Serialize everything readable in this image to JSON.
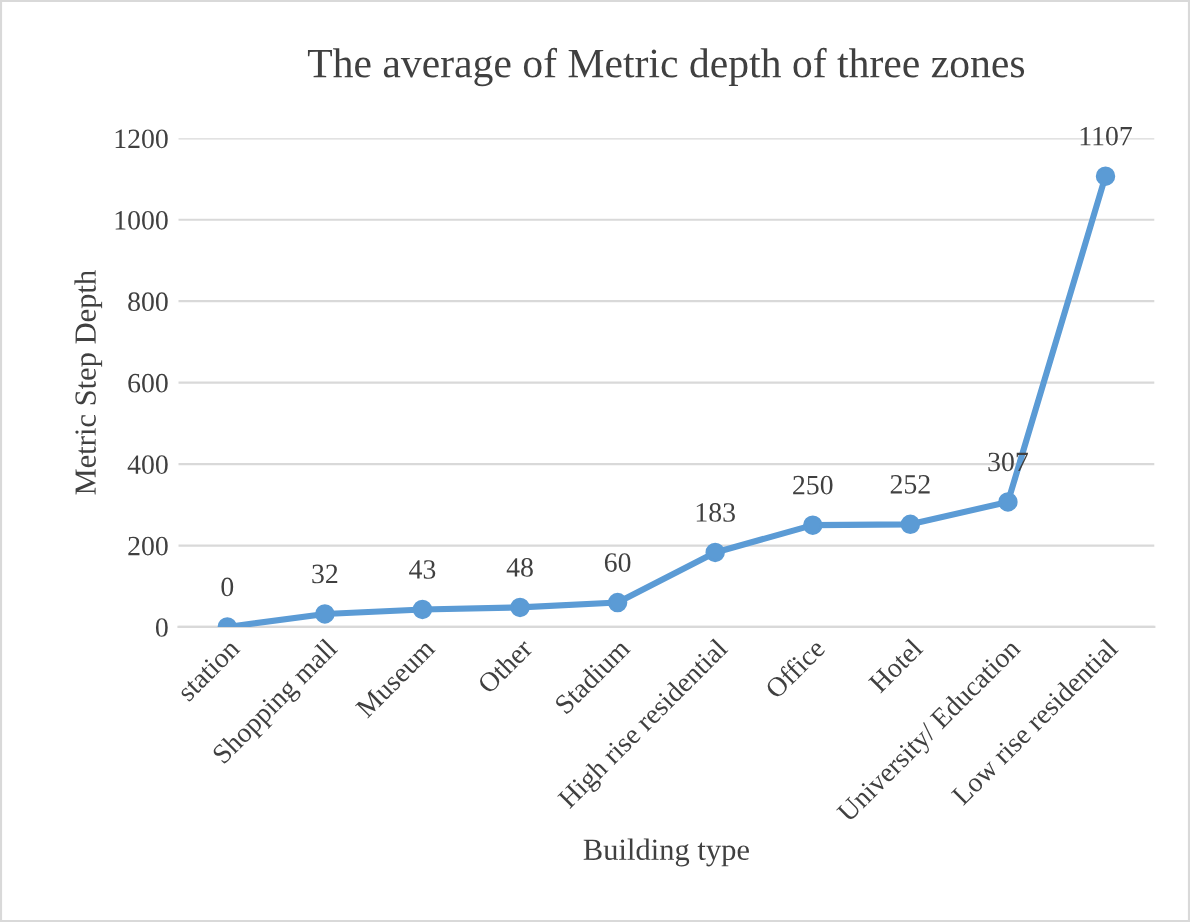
{
  "chart_data": {
    "type": "line",
    "title": "The average of Metric depth of three zones",
    "xlabel": "Building type",
    "ylabel": "Metric Step Depth",
    "categories": [
      "station",
      "Shopping mall",
      "Museum",
      "Other",
      "Stadium",
      "High rise residential",
      "Office",
      "Hotel",
      "University/ Education",
      "Low rise residential"
    ],
    "series": [
      {
        "color": "#5b9bd5",
        "values": [
          0,
          32,
          43,
          48,
          60,
          183,
          250,
          252,
          307,
          1107
        ]
      }
    ],
    "ylim": [
      0,
      1200
    ],
    "yticks": [
      0,
      200,
      400,
      600,
      800,
      1000,
      1200
    ],
    "grid": "y",
    "marker": "circle",
    "line_style": "solid",
    "data_labels": true,
    "legend": false
  }
}
